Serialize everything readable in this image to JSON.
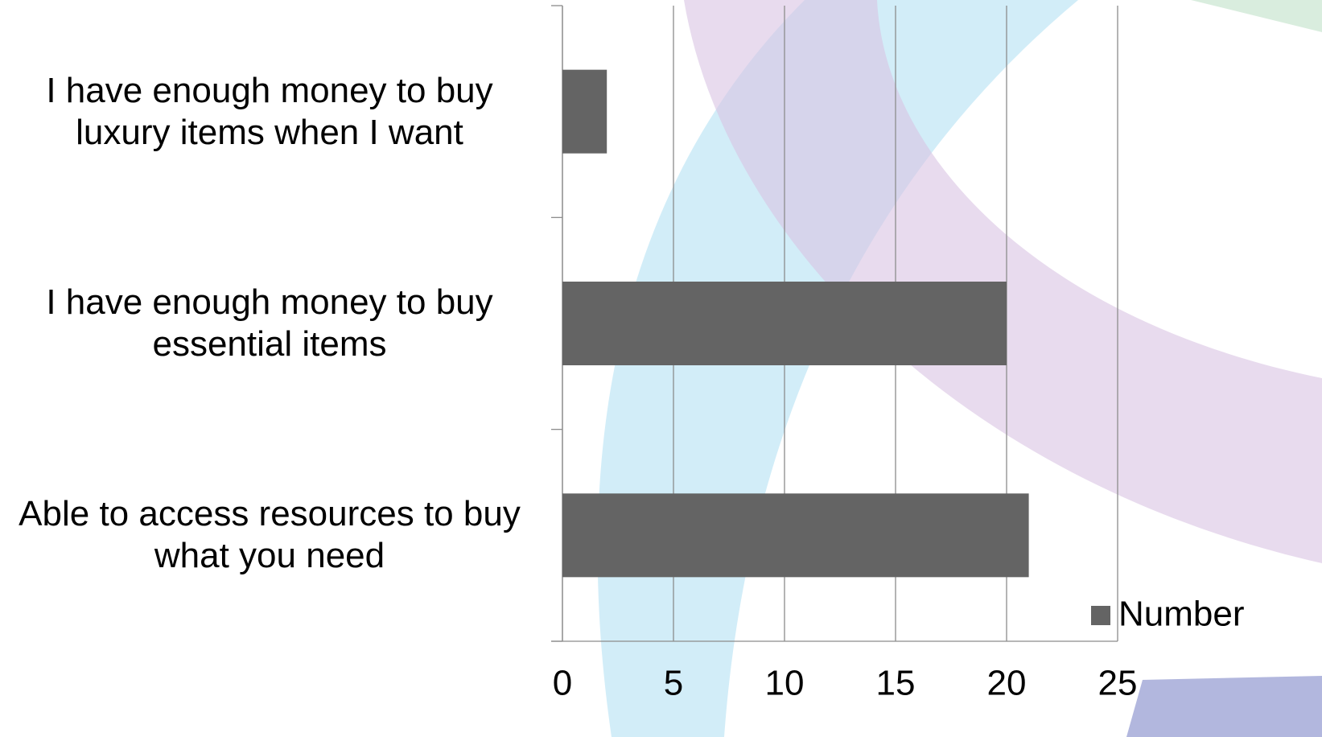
{
  "chart_data": {
    "type": "bar",
    "orientation": "horizontal",
    "categories": [
      "I have enough money to buy luxury items when I want",
      "I have enough money to buy essential items",
      "Able to access resources to buy what you need"
    ],
    "series": [
      {
        "name": "Number",
        "color": "#646464",
        "values": [
          2,
          20,
          21
        ]
      }
    ],
    "xlim": [
      0,
      25
    ],
    "xticks": [
      0,
      5,
      10,
      15,
      20,
      25
    ],
    "grid": true,
    "legend": "bottom-right"
  }
}
